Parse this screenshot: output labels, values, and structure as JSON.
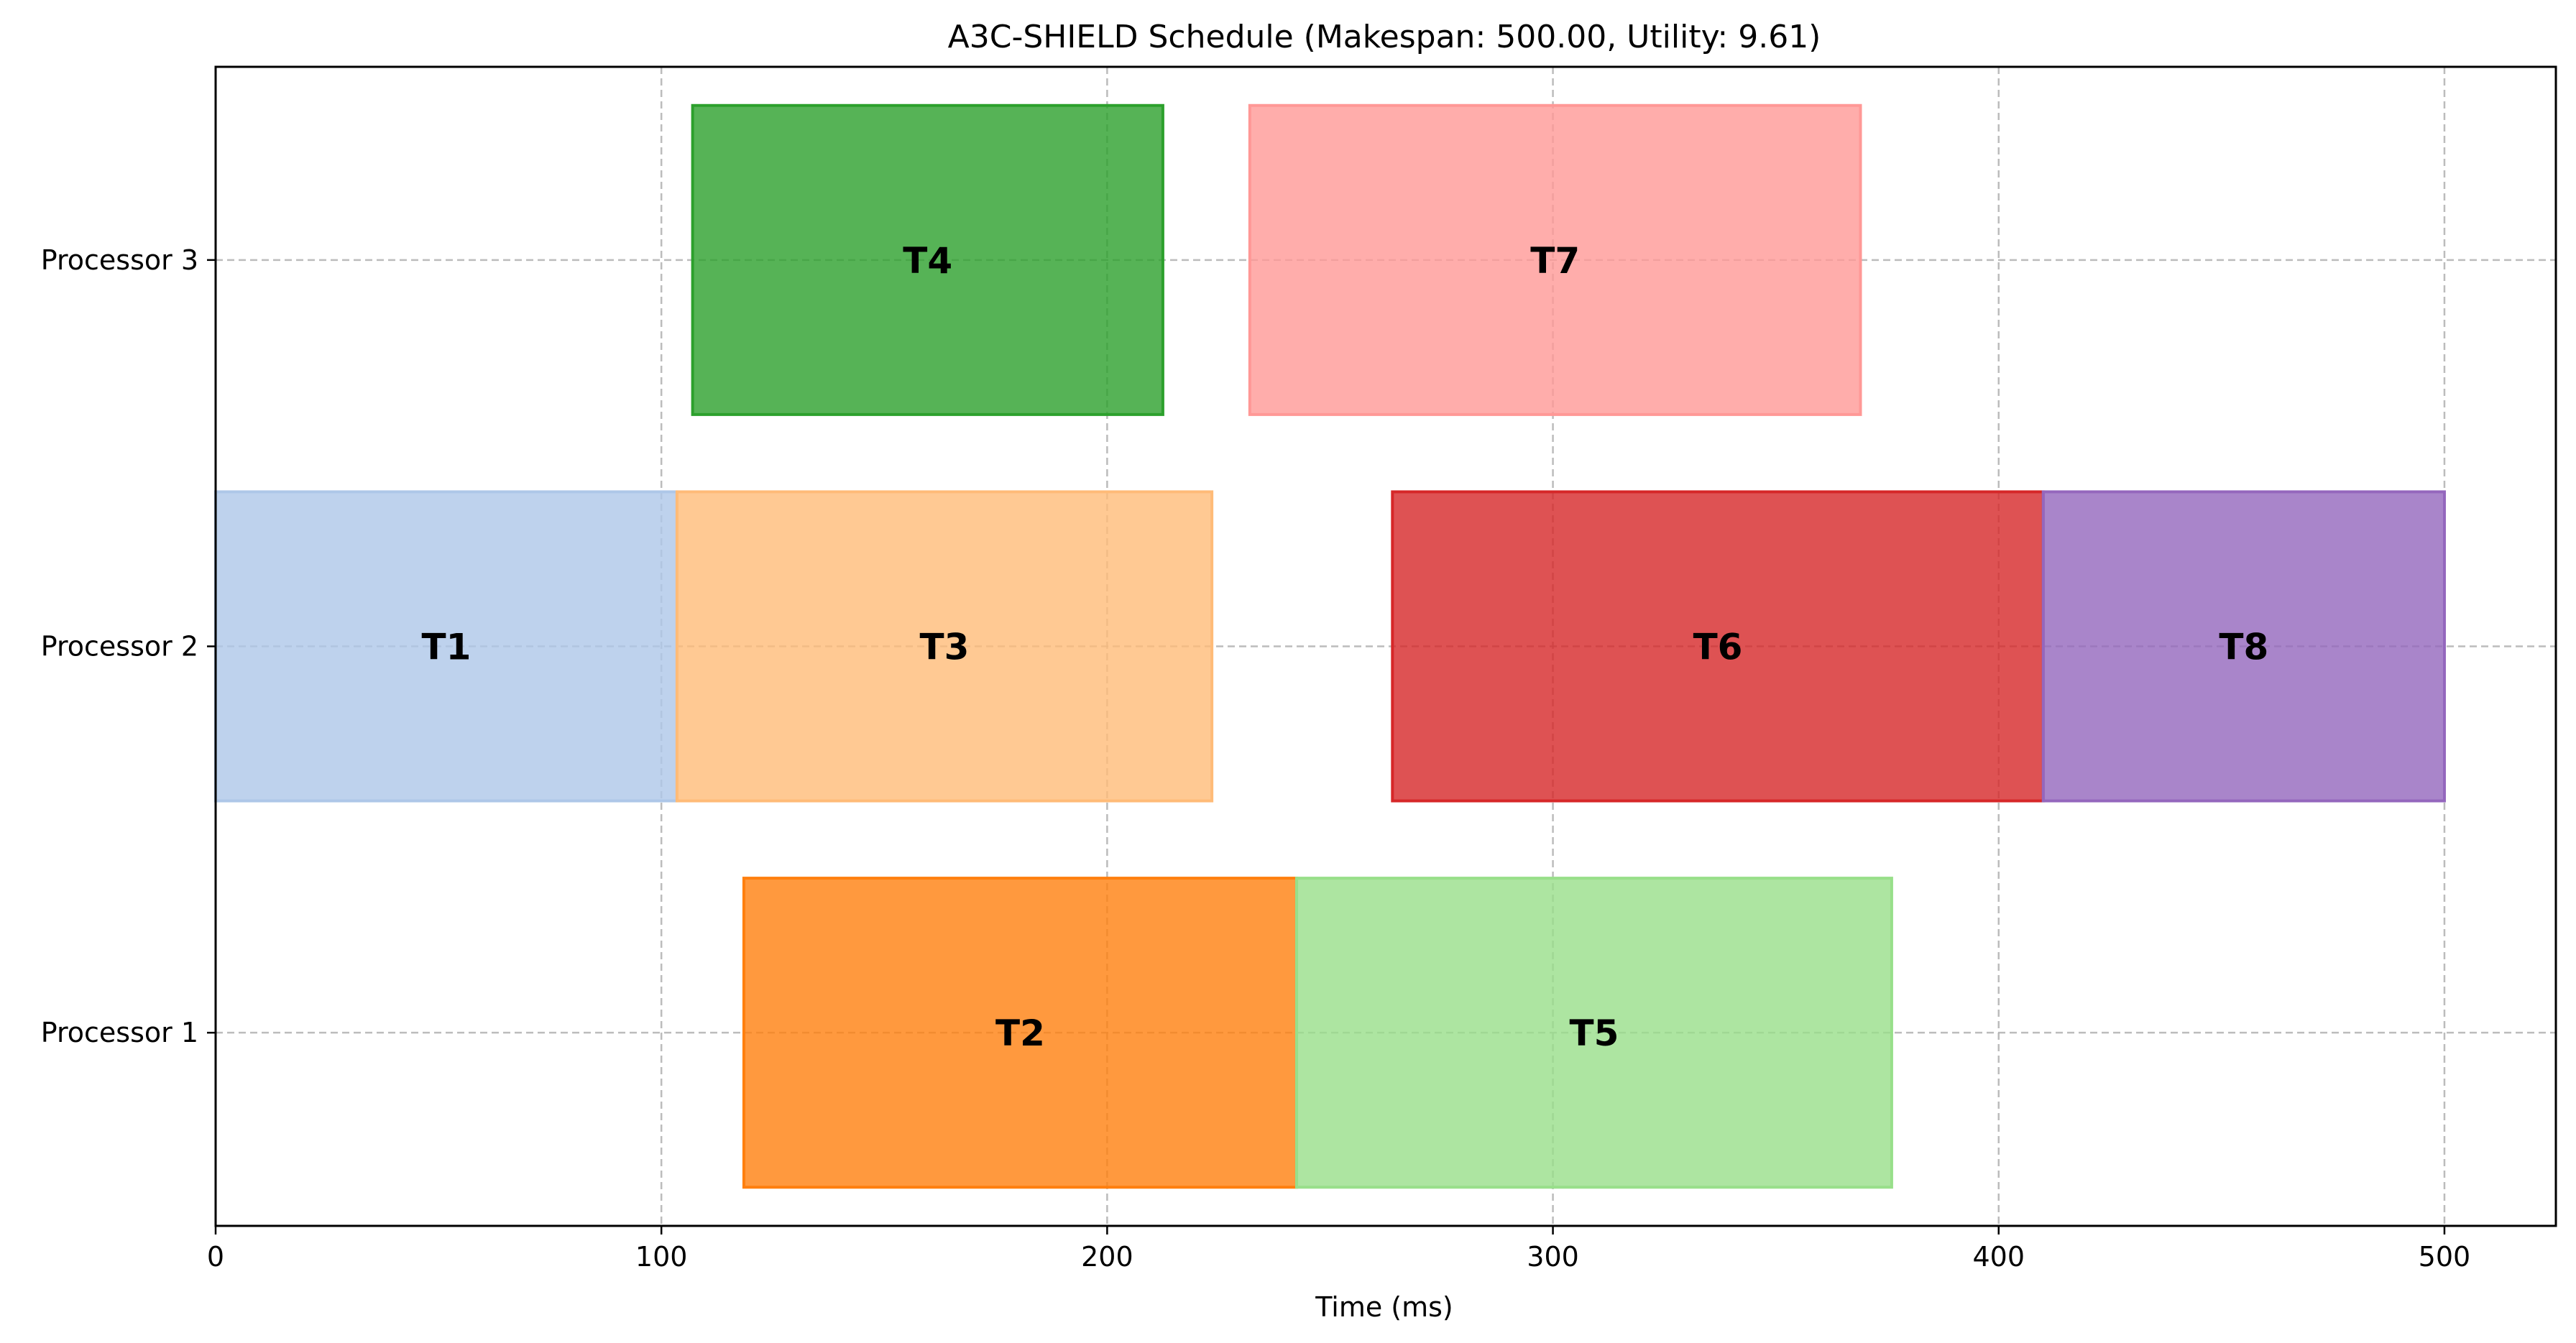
{
  "chart_data": {
    "type": "gantt",
    "title": "A3C-SHIELD Schedule (Makespan: 500.00, Utility: 9.61)",
    "xlabel": "Time (ms)",
    "ylabel": "",
    "xlim": [
      0,
      525
    ],
    "xticks": [
      0,
      100,
      200,
      300,
      400,
      500
    ],
    "categories": [
      "Processor 1",
      "Processor 2",
      "Processor 3"
    ],
    "grid": true,
    "tasks": [
      {
        "name": "T1",
        "processor": "Processor 2",
        "start": 0,
        "end": 103.5,
        "color": "#aec7e8",
        "opacity": 0.8
      },
      {
        "name": "T2",
        "processor": "Processor 1",
        "start": 118.5,
        "end": 242.5,
        "color": "#ff7f0e",
        "opacity": 0.8
      },
      {
        "name": "T3",
        "processor": "Processor 2",
        "start": 103.5,
        "end": 223.5,
        "color": "#ffbb78",
        "opacity": 0.8
      },
      {
        "name": "T4",
        "processor": "Processor 3",
        "start": 107,
        "end": 212.5,
        "color": "#2ca02c",
        "opacity": 0.8
      },
      {
        "name": "T5",
        "processor": "Processor 1",
        "start": 242.5,
        "end": 376,
        "color": "#98df8a",
        "opacity": 0.8
      },
      {
        "name": "T6",
        "processor": "Processor 2",
        "start": 264,
        "end": 410,
        "color": "#d62728",
        "opacity": 0.8
      },
      {
        "name": "T7",
        "processor": "Processor 3",
        "start": 232,
        "end": 369,
        "color": "#ff9896",
        "opacity": 0.8
      },
      {
        "name": "T8",
        "processor": "Processor 2",
        "start": 410,
        "end": 500,
        "color": "#9467bd",
        "opacity": 0.8
      }
    ]
  }
}
